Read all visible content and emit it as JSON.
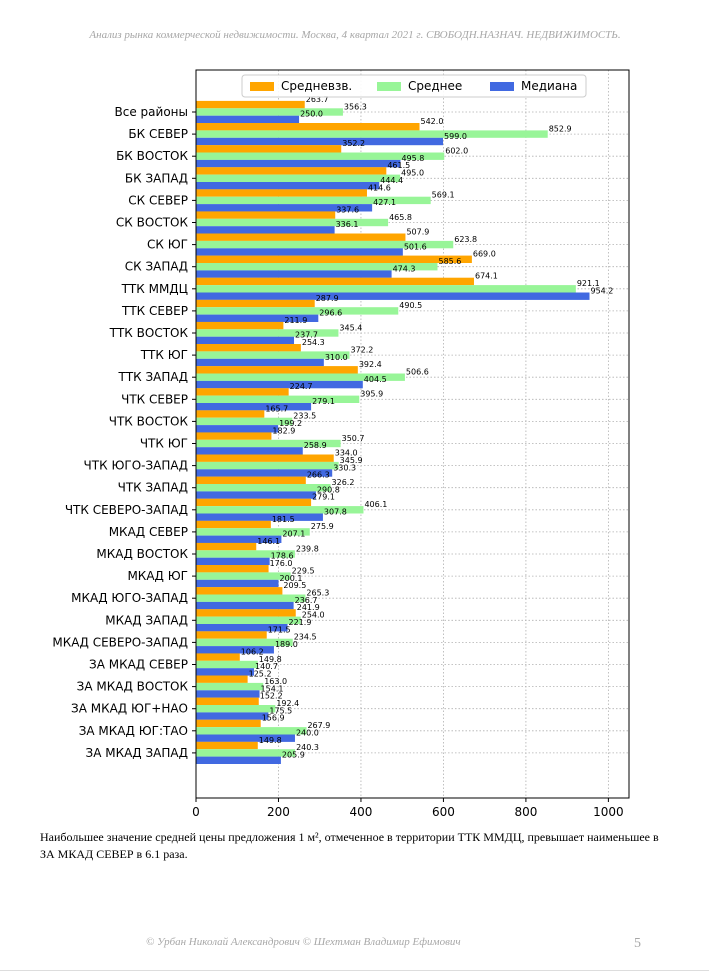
{
  "header": {
    "title": "Анализ рынка коммерческой недвижимости.   Москва,  4 квартал 2021 г.   СВОБОДН.НАЗНАЧ. НЕДВИЖИМОСТЬ."
  },
  "chart_data": {
    "type": "bar",
    "orientation": "horizontal",
    "categories": [
      "Все районы",
      "БК СЕВЕР",
      "БК ВОСТОК",
      "БК ЗАПАД",
      "СК СЕВЕР",
      "СК ВОСТОК",
      "СК ЮГ",
      "СК ЗАПАД",
      "ТТК ММДЦ",
      "ТТК СЕВЕР",
      "ТТК ВОСТОК",
      "ТТК ЮГ",
      "ТТК ЗАПАД",
      "ЧТК СЕВЕР",
      "ЧТК ВОСТОК",
      "ЧТК ЮГ",
      "ЧТК ЮГО-ЗАПАД",
      "ЧТК ЗАПАД",
      "ЧТК СЕВЕРО-ЗАПАД",
      "МКАД СЕВЕР",
      "МКАД ВОСТОК",
      "МКАД ЮГ",
      "МКАД ЮГО-ЗАПАД",
      "МКАД ЗАПАД",
      "МКАД СЕВЕРО-ЗАПАД",
      "ЗА МКАД СЕВЕР",
      "ЗА МКАД ВОСТОК",
      "ЗА МКАД ЮГ+НАО",
      "ЗА МКАД ЮГ:ТАО",
      "ЗА МКАД ЗАПАД"
    ],
    "series": [
      {
        "name": "Средневзв.",
        "color": "#ffa500",
        "values": [
          263.7,
          542.0,
          352.2,
          461.5,
          414.6,
          337.6,
          507.9,
          669.0,
          674.1,
          287.9,
          211.9,
          254.3,
          392.4,
          224.7,
          165.7,
          182.9,
          334.0,
          266.3,
          279.1,
          181.5,
          146.1,
          176.0,
          209.5,
          241.9,
          171.5,
          106.2,
          125.2,
          152.2,
          156.9,
          149.8
        ]
      },
      {
        "name": "Среднее",
        "color": "#98f598",
        "values": [
          356.3,
          852.9,
          602.0,
          495.0,
          569.1,
          465.8,
          623.8,
          585.6,
          921.1,
          490.5,
          345.4,
          372.2,
          506.6,
          395.9,
          233.5,
          350.7,
          345.9,
          326.2,
          406.1,
          275.9,
          239.8,
          229.5,
          265.3,
          254.0,
          234.5,
          149.8,
          163.0,
          192.4,
          267.9,
          240.3
        ]
      },
      {
        "name": "Медиана",
        "color": "#4169e1",
        "values": [
          250.0,
          599.0,
          495.8,
          444.4,
          427.1,
          336.1,
          501.6,
          474.3,
          954.2,
          296.6,
          237.7,
          310.0,
          404.5,
          279.1,
          199.2,
          258.9,
          330.3,
          290.8,
          307.8,
          207.1,
          178.6,
          200.1,
          236.7,
          221.9,
          189.0,
          140.7,
          154.1,
          175.5,
          240.0,
          205.9
        ]
      }
    ],
    "value_labels": {
      "Средневзв.": [
        "263.7",
        "542.0",
        "352.2",
        "461.5",
        "414.6",
        "337.6",
        "507.9",
        "669.0",
        "674.1",
        "287.9",
        "211.9",
        "254.3",
        "392.4",
        "224.7",
        "165.7",
        "182.9",
        "334.0",
        "266.3",
        "279.1",
        "181.5",
        "146.1",
        "176.0",
        "209.5",
        "241.9",
        "171.5",
        "106.2",
        "125.2",
        "152.2",
        "156.9",
        "149.8"
      ],
      "Среднее": [
        "356.3",
        "852.9",
        "602.0",
        "495.0",
        "569.1",
        "465.8",
        "623.8",
        "585.6",
        "921.1",
        "490.5",
        "345.4",
        "372.2",
        "506.6",
        "395.9",
        "233.5",
        "350.7",
        "345.9",
        "326.2",
        "406.1",
        "275.9",
        "239.8",
        "229.5",
        "265.3",
        "254.0",
        "234.5",
        "149.8",
        "163.0",
        "192.4",
        "267.9",
        "240.3"
      ],
      "Медиана": [
        "250.0",
        "599.0",
        "495.8",
        "444.4",
        "427.1",
        "336.1",
        "501.6",
        "474.3",
        "954.2",
        "296.6",
        "237.7",
        "310.0",
        "404.5",
        "279.1",
        "199.2",
        "258.9",
        "330.3",
        "290.8",
        "307.8",
        "207.1",
        "178.6",
        "200.1",
        "236.7",
        "221.9",
        "189.0",
        "140.7",
        "154.1",
        "175.5",
        "240.0",
        "205.9"
      ]
    },
    "xlim": [
      0,
      1050
    ],
    "xticks": [
      "0",
      "200",
      "400",
      "600",
      "800",
      "1000"
    ],
    "xtick_values": [
      0,
      200,
      400,
      600,
      800,
      1000
    ],
    "grid": true,
    "legend": "top-center"
  },
  "caption": " Наибольшее значение средней цены предложения 1 м², отмеченное в территории ТТК ММДЦ, превышает наименьшее в ЗА МКАД СЕВЕР в 6.1 раза.",
  "footer": {
    "authors": "© Урбан Николай Александрович  © Шехтман Владимир Ефимович",
    "page": "5"
  }
}
